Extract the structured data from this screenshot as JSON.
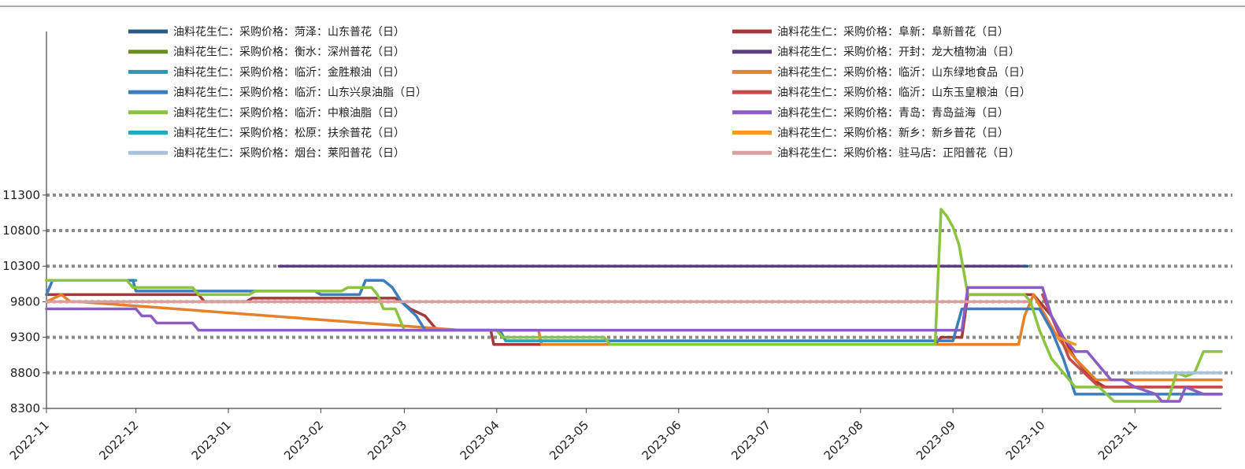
{
  "chart_data": {
    "type": "line",
    "title": "",
    "xlabel": "",
    "ylabel": "",
    "ylim": [
      8300,
      13600
    ],
    "yticks": [
      8300,
      8800,
      9300,
      9800,
      10300,
      10800,
      11300
    ],
    "ytick_labels": [
      "8300",
      "8800",
      "9300",
      "9800",
      "10300",
      "10800",
      "11300"
    ],
    "xlim": [
      "2022-11-01",
      "2023-11-30"
    ],
    "xticks": [
      "2022-11-01",
      "2022-12-01",
      "2023-01-01",
      "2023-02-01",
      "2023-03-01",
      "2023-04-01",
      "2023-05-01",
      "2023-06-01",
      "2023-07-01",
      "2023-08-01",
      "2023-09-01",
      "2023-10-01",
      "2023-11-01"
    ],
    "xtick_labels": [
      "2022-11",
      "2022-12",
      "2023-01",
      "2023-02",
      "2023-03",
      "2023-04",
      "2023-05",
      "2023-06",
      "2023-07",
      "2023-08",
      "2023-09",
      "2023-10",
      "2023-11"
    ],
    "grid": "dotted horizontal",
    "legend_position": "top, two columns",
    "series": [
      {
        "name": "油料花生仁：采购价格：菏泽：山东普花（日）",
        "color": "#2a5a86",
        "points": [
          [
            "2023-01-20",
            10300
          ],
          [
            "2023-09-26",
            10300
          ]
        ]
      },
      {
        "name": "油料花生仁：采购价格：阜新：阜新普花（日）",
        "color": "#a6383a",
        "points": [
          [
            "2022-11-01",
            9900
          ],
          [
            "2022-12-22",
            9900
          ],
          [
            "2022-12-24",
            9800
          ],
          [
            "2023-01-07",
            9800
          ],
          [
            "2023-01-09",
            9850
          ],
          [
            "2023-02-26",
            9850
          ],
          [
            "2023-02-28",
            9800
          ],
          [
            "2023-03-03",
            9700
          ],
          [
            "2023-03-08",
            9600
          ],
          [
            "2023-03-12",
            9400
          ],
          [
            "2023-03-30",
            9400
          ],
          [
            "2023-03-31",
            9200
          ],
          [
            "2023-05-07",
            9200
          ],
          [
            "2023-08-26",
            9200
          ],
          [
            "2023-08-28",
            9300
          ],
          [
            "2023-09-04",
            9300
          ],
          [
            "2023-09-06",
            9900
          ],
          [
            "2023-09-28",
            9900
          ],
          [
            "2023-10-04",
            9600
          ],
          [
            "2023-10-08",
            9300
          ],
          [
            "2023-10-12",
            9000
          ],
          [
            "2023-10-18",
            8700
          ],
          [
            "2023-10-22",
            8600
          ],
          [
            "2023-11-30",
            8600
          ]
        ]
      },
      {
        "name": "油料花生仁：采购价格：衡水：深州普花（日）",
        "color": "#6b8e23",
        "points": [
          [
            "2023-11-01",
            8800
          ],
          [
            "2023-11-05",
            8800
          ]
        ]
      },
      {
        "name": "油料花生仁：采购价格：开封：龙大植物油（日）",
        "color": "#5a3f83",
        "points": [
          [
            "2023-01-18",
            10300
          ],
          [
            "2023-09-24",
            10300
          ]
        ]
      },
      {
        "name": "油料花生仁：采购价格：临沂：金胜粮油（日）",
        "color": "#2b9bb0",
        "points": [
          [
            "2022-11-01",
            10100
          ],
          [
            "2022-12-01",
            10100
          ]
        ]
      },
      {
        "name": "油料花生仁：采购价格：临沂：山东绿地食品（日）",
        "color": "#e6812a",
        "points": [
          [
            "2022-11-01",
            9800
          ],
          [
            "2022-11-06",
            9900
          ],
          [
            "2022-11-09",
            9800
          ],
          [
            "2022-11-12",
            9800
          ],
          [
            "2023-03-20",
            9400
          ],
          [
            "2023-04-15",
            9400
          ],
          [
            "2023-04-16",
            9200
          ],
          [
            "2023-08-26",
            9200
          ],
          [
            "2023-09-23",
            9200
          ],
          [
            "2023-09-25",
            9600
          ],
          [
            "2023-09-28",
            9900
          ],
          [
            "2023-10-02",
            9600
          ],
          [
            "2023-10-06",
            9300
          ],
          [
            "2023-10-12",
            9000
          ],
          [
            "2023-10-19",
            8700
          ],
          [
            "2023-11-30",
            8700
          ]
        ]
      },
      {
        "name": "油料花生仁：采购价格：临沂：山东兴泉油脂（日）",
        "color": "#3b7dbf",
        "points": [
          [
            "2022-11-01",
            9900
          ],
          [
            "2022-11-03",
            10100
          ],
          [
            "2022-11-30",
            10100
          ],
          [
            "2022-12-01",
            9950
          ],
          [
            "2023-01-30",
            9950
          ],
          [
            "2023-02-01",
            9900
          ],
          [
            "2023-02-14",
            9900
          ],
          [
            "2023-02-16",
            10100
          ],
          [
            "2023-02-22",
            10100
          ],
          [
            "2023-02-25",
            10000
          ],
          [
            "2023-02-28",
            9800
          ],
          [
            "2023-03-05",
            9600
          ],
          [
            "2023-03-08",
            9400
          ],
          [
            "2023-04-02",
            9400
          ],
          [
            "2023-04-04",
            9250
          ],
          [
            "2023-08-26",
            9250
          ],
          [
            "2023-09-01",
            9250
          ],
          [
            "2023-09-04",
            9700
          ],
          [
            "2023-09-30",
            9700
          ],
          [
            "2023-10-04",
            9400
          ],
          [
            "2023-10-08",
            9000
          ],
          [
            "2023-10-12",
            8500
          ],
          [
            "2023-11-30",
            8500
          ]
        ]
      },
      {
        "name": "油料花生仁：采购价格：临沂：山东玉皇粮油（日）",
        "color": "#c94a4a",
        "points": [
          [
            "2023-10-01",
            9900
          ],
          [
            "2023-10-05",
            9500
          ],
          [
            "2023-10-10",
            9000
          ],
          [
            "2023-10-15",
            8800
          ],
          [
            "2023-10-20",
            8600
          ],
          [
            "2023-11-30",
            8600
          ]
        ]
      },
      {
        "name": "油料花生仁：采购价格：临沂：中粮油脂（日）",
        "color": "#8cc43f",
        "points": [
          [
            "2022-11-01",
            10100
          ],
          [
            "2022-11-28",
            10100
          ],
          [
            "2022-11-30",
            10000
          ],
          [
            "2022-12-20",
            10000
          ],
          [
            "2022-12-22",
            9900
          ],
          [
            "2023-01-08",
            9900
          ],
          [
            "2023-01-10",
            9950
          ],
          [
            "2023-02-08",
            9950
          ],
          [
            "2023-02-10",
            10000
          ],
          [
            "2023-02-18",
            10000
          ],
          [
            "2023-02-20",
            9900
          ],
          [
            "2023-02-22",
            9700
          ],
          [
            "2023-02-26",
            9700
          ],
          [
            "2023-03-01",
            9400
          ],
          [
            "2023-04-01",
            9400
          ],
          [
            "2023-04-03",
            9300
          ],
          [
            "2023-05-07",
            9300
          ],
          [
            "2023-05-09",
            9200
          ],
          [
            "2023-08-26",
            9200
          ],
          [
            "2023-08-28",
            11100
          ],
          [
            "2023-08-30",
            11000
          ],
          [
            "2023-09-01",
            10850
          ],
          [
            "2023-09-03",
            10600
          ],
          [
            "2023-09-06",
            9900
          ],
          [
            "2023-09-25",
            9900
          ],
          [
            "2023-09-27",
            9800
          ],
          [
            "2023-09-30",
            9400
          ],
          [
            "2023-10-04",
            9000
          ],
          [
            "2023-10-08",
            8800
          ],
          [
            "2023-10-12",
            8600
          ],
          [
            "2023-10-20",
            8600
          ],
          [
            "2023-10-25",
            8400
          ],
          [
            "2023-11-12",
            8400
          ],
          [
            "2023-11-15",
            8800
          ],
          [
            "2023-11-18",
            8750
          ],
          [
            "2023-11-21",
            8800
          ],
          [
            "2023-11-24",
            9100
          ],
          [
            "2023-11-30",
            9100
          ]
        ]
      },
      {
        "name": "油料花生仁：采购价格：青岛：青岛益海（日）",
        "color": "#8a5cc4",
        "points": [
          [
            "2022-11-01",
            9700
          ],
          [
            "2022-12-01",
            9700
          ],
          [
            "2022-12-03",
            9600
          ],
          [
            "2022-12-06",
            9600
          ],
          [
            "2022-12-08",
            9500
          ],
          [
            "2022-12-20",
            9500
          ],
          [
            "2022-12-22",
            9400
          ],
          [
            "2023-09-04",
            9400
          ],
          [
            "2023-09-06",
            10000
          ],
          [
            "2023-10-01",
            10000
          ],
          [
            "2023-10-04",
            9600
          ],
          [
            "2023-10-08",
            9300
          ],
          [
            "2023-10-12",
            9100
          ],
          [
            "2023-10-16",
            9100
          ],
          [
            "2023-10-20",
            8900
          ],
          [
            "2023-10-24",
            8700
          ],
          [
            "2023-10-28",
            8700
          ],
          [
            "2023-11-01",
            8600
          ],
          [
            "2023-11-08",
            8500
          ],
          [
            "2023-11-10",
            8400
          ],
          [
            "2023-11-16",
            8400
          ],
          [
            "2023-11-18",
            8600
          ],
          [
            "2023-11-24",
            8500
          ],
          [
            "2023-11-30",
            8500
          ]
        ]
      },
      {
        "name": "油料花生仁：采购价格：松原：扶余普花（日）",
        "color": "#27a6c1",
        "points": [
          [
            "2023-04-04",
            9250
          ],
          [
            "2023-05-07",
            9250
          ]
        ]
      },
      {
        "name": "油料花生仁：采购价格：新乡：新乡普花（日）",
        "color": "#f39a2c",
        "points": [
          [
            "2023-10-06",
            9300
          ],
          [
            "2023-10-12",
            9200
          ]
        ]
      },
      {
        "name": "油料花生仁：采购价格：烟台：莱阳普花（日）",
        "color": "#a9c1dc",
        "points": [
          [
            "2023-11-01",
            8800
          ],
          [
            "2023-11-30",
            8800
          ]
        ]
      },
      {
        "name": "油料花生仁：采购价格：驻马店：正阳普花（日）",
        "color": "#d9a0a0",
        "points": [
          [
            "2022-11-01",
            9800
          ],
          [
            "2023-09-26",
            9800
          ]
        ]
      }
    ]
  }
}
